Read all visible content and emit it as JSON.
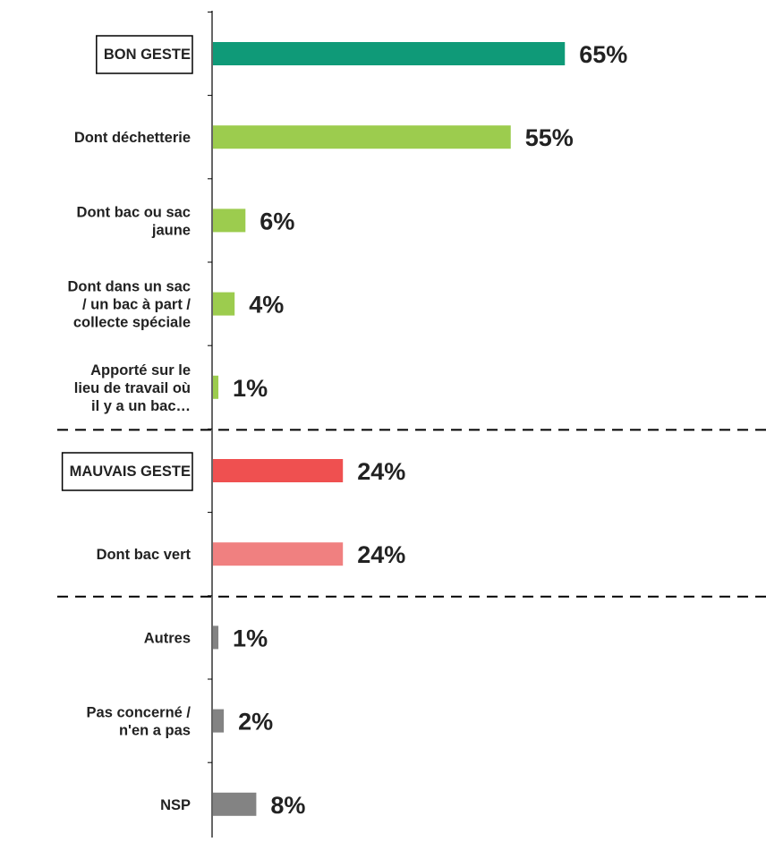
{
  "chart_data": {
    "type": "bar",
    "orientation": "horizontal",
    "categories": [
      [
        "BON GESTE"
      ],
      [
        "Dont déchetterie"
      ],
      [
        "Dont bac ou sac",
        "jaune"
      ],
      [
        "Dont dans un sac",
        "/ un bac à part /",
        "collecte spéciale"
      ],
      [
        "Apporté sur le",
        "lieu de travail où",
        "il y a un bac…"
      ],
      [
        "MAUVAIS GESTE"
      ],
      [
        "Dont bac vert"
      ],
      [
        "Autres"
      ],
      [
        "Pas concerné /",
        "n'en a pas"
      ],
      [
        "NSP"
      ]
    ],
    "values": [
      65,
      55,
      6,
      4,
      1,
      24,
      24,
      1,
      2,
      8
    ],
    "value_labels": [
      "65%",
      "55%",
      "6%",
      "4%",
      "1%",
      "24%",
      "24%",
      "1%",
      "2%",
      "8%"
    ],
    "boxed_categories": [
      0,
      5
    ],
    "bar_colors": [
      "#0f9a78",
      "#9ccc4e",
      "#9ccc4e",
      "#9ccc4e",
      "#9ccc4e",
      "#ef5050",
      "#f08080",
      "#838383",
      "#838383",
      "#838383"
    ],
    "separators_after": [
      4,
      6
    ],
    "xlim": [
      0,
      100
    ],
    "grid": false,
    "legend": "none",
    "title": "",
    "xlabel": "",
    "ylabel": ""
  }
}
